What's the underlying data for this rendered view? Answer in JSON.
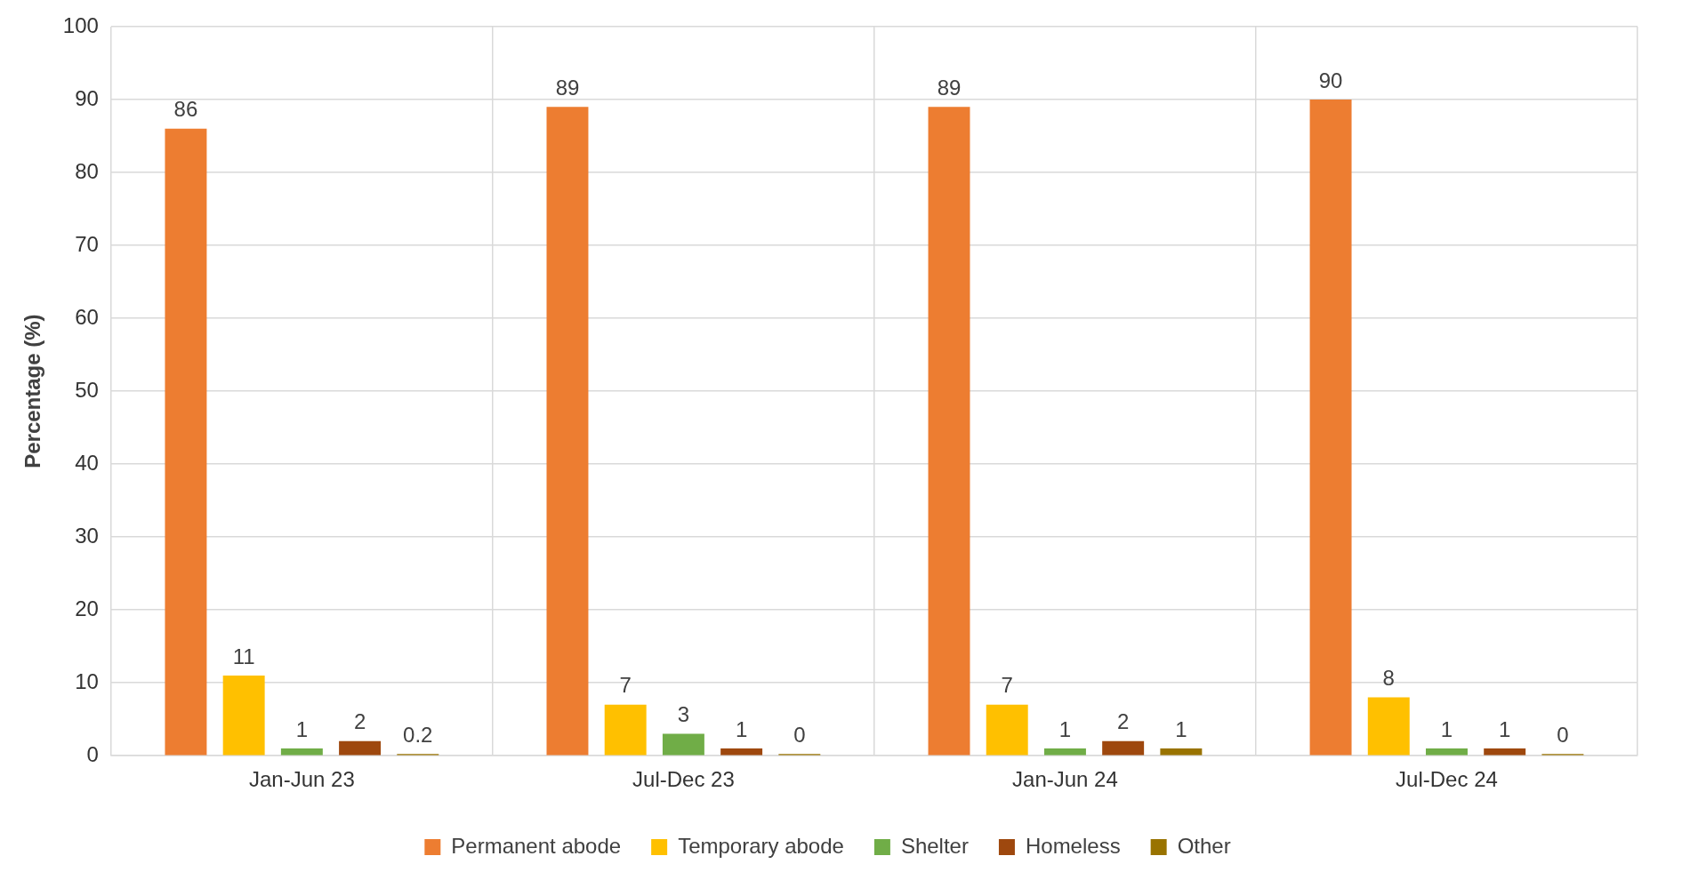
{
  "chart_data": {
    "type": "bar",
    "ylabel": "Percentage (%)",
    "categories": [
      "Jan-Jun 23",
      "Jul-Dec 23",
      "Jan-Jun 24",
      "Jul-Dec 24"
    ],
    "series": [
      {
        "name": "Permanent abode",
        "color": "#ed7d31",
        "values": [
          86,
          89,
          89,
          90
        ]
      },
      {
        "name": "Temporary abode",
        "color": "#ffc000",
        "values": [
          11,
          7,
          7,
          8
        ]
      },
      {
        "name": "Shelter",
        "color": "#70ad47",
        "values": [
          1,
          3,
          1,
          1
        ]
      },
      {
        "name": "Homeless",
        "color": "#9e480e",
        "values": [
          2,
          1,
          2,
          1
        ]
      },
      {
        "name": "Other",
        "color": "#997300",
        "values": [
          0.2,
          0,
          1,
          0
        ]
      }
    ],
    "ylim": [
      0,
      100
    ],
    "yticks": [
      0,
      10,
      20,
      30,
      40,
      50,
      60,
      70,
      80,
      90,
      100
    ],
    "grid": true,
    "legend": "bottom",
    "data_labels": true
  }
}
